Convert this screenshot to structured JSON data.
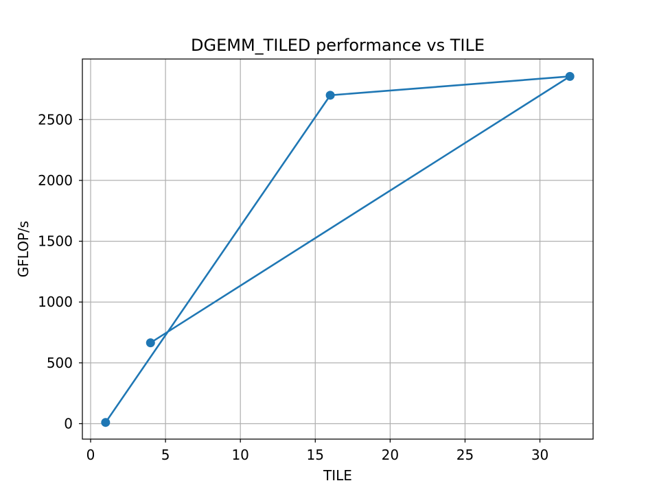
{
  "chart_data": {
    "type": "line",
    "title": "DGEMM_TILED performance vs TILE",
    "xlabel": "TILE",
    "ylabel": "GFLOP/s",
    "xlim": [
      -0.55,
      33.55
    ],
    "ylim": [
      -127,
      2998
    ],
    "xticks": [
      0,
      5,
      10,
      15,
      20,
      25,
      30
    ],
    "yticks": [
      0,
      500,
      1000,
      1500,
      2000,
      2500
    ],
    "grid": true,
    "series": [
      {
        "name": "",
        "color": "#1f77b4",
        "marker": "circle",
        "x": [
          1,
          16,
          32,
          4
        ],
        "y": [
          10,
          2700,
          2855,
          665
        ]
      }
    ]
  }
}
